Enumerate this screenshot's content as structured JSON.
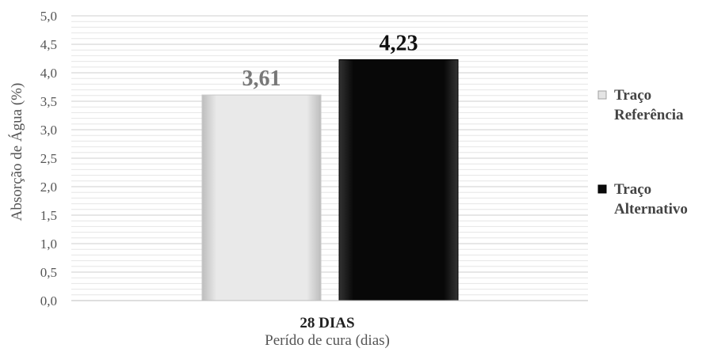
{
  "chart_data": {
    "type": "bar",
    "categories": [
      "28 DIAS"
    ],
    "series": [
      {
        "name": "Traço Referência",
        "values": [
          3.61
        ],
        "label": "3,61",
        "color": "#e6e6e6"
      },
      {
        "name": "Traço Alternativo",
        "values": [
          4.23
        ],
        "label": "4,23",
        "color": "#0a0a0a"
      }
    ],
    "legend_lines": [
      [
        "Traço",
        "Referência"
      ],
      [
        "Traço",
        "Alternativo"
      ]
    ],
    "legend_position": "right",
    "xlabel": "Perído de cura (dias)",
    "ylabel": "Absorção de Água (%)",
    "ylim": [
      0,
      5
    ],
    "yticks": [
      "0,0",
      "0,5",
      "1,0",
      "1,5",
      "2,0",
      "2,5",
      "3,0",
      "3,5",
      "4,0",
      "4,5",
      "5,0"
    ],
    "grid": true
  }
}
